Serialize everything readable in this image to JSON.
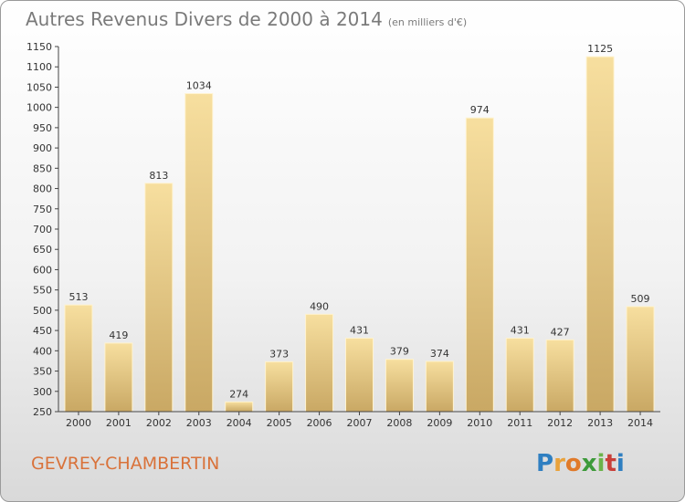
{
  "header": {
    "title": "Autres Revenus Divers de 2000 à 2014",
    "subtitle": "(en milliers d'€)"
  },
  "footer": {
    "place": "GEVREY-CHAMBERTIN",
    "logo_text": "Proxiti"
  },
  "colors": {
    "bar_light": "#f7df9f",
    "bar_dark": "#c9a864",
    "place_text": "#d9723a",
    "axis": "#444444"
  },
  "chart_data": {
    "type": "bar",
    "title": "Autres Revenus Divers de 2000 à 2014",
    "subtitle": "(en milliers d'€)",
    "categories": [
      "2000",
      "2001",
      "2002",
      "2003",
      "2004",
      "2005",
      "2006",
      "2007",
      "2008",
      "2009",
      "2010",
      "2011",
      "2012",
      "2013",
      "2014"
    ],
    "values": [
      513,
      419,
      813,
      1034,
      274,
      373,
      490,
      431,
      379,
      374,
      974,
      431,
      427,
      1125,
      509
    ],
    "ylim": [
      250,
      1150
    ],
    "ytick_step": 50,
    "grid": false,
    "legend": "none"
  }
}
